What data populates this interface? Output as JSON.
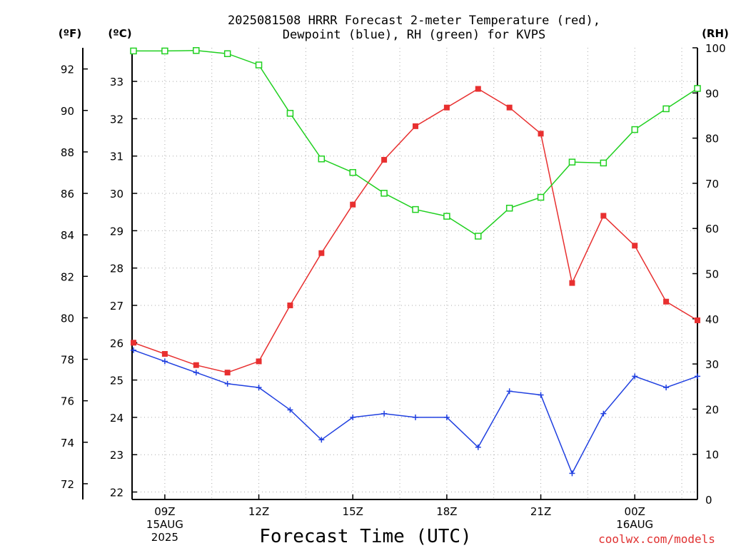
{
  "chart_data": {
    "type": "line",
    "title_line1": "2025081508 HRRR Forecast 2-meter Temperature (red),",
    "title_line2": "Dewpoint (blue), RH (green) for KVPS",
    "units": {
      "left_f": "(ºF)",
      "left_c": "(ºC)",
      "right": "(RH)"
    },
    "xlabel": "Forecast Time (UTC)",
    "credit": "coolwx.com/models",
    "x_hours": [
      8,
      9,
      10,
      11,
      12,
      13,
      14,
      15,
      16,
      17,
      18,
      19,
      20,
      21,
      22,
      23,
      24,
      25,
      26
    ],
    "x_range": [
      8,
      26
    ],
    "x_ticks": [
      {
        "hour": 9,
        "lines": [
          "09Z",
          "15AUG",
          "2025"
        ]
      },
      {
        "hour": 12,
        "lines": [
          "12Z"
        ]
      },
      {
        "hour": 15,
        "lines": [
          "15Z"
        ]
      },
      {
        "hour": 18,
        "lines": [
          "18Z"
        ]
      },
      {
        "hour": 21,
        "lines": [
          "21Z"
        ]
      },
      {
        "hour": 24,
        "lines": [
          "00Z",
          "16AUG"
        ]
      }
    ],
    "left_axis_f": {
      "ticks": [
        72,
        74,
        76,
        78,
        80,
        82,
        84,
        86,
        88,
        90,
        92
      ]
    },
    "left_axis_c": {
      "range": [
        21.8,
        33.9
      ],
      "ticks": [
        22,
        23,
        24,
        25,
        26,
        27,
        28,
        29,
        30,
        31,
        32,
        33
      ]
    },
    "right_axis_rh": {
      "range": [
        0,
        100
      ],
      "ticks": [
        0,
        10,
        20,
        30,
        40,
        50,
        60,
        70,
        80,
        90,
        100
      ]
    },
    "grid": true,
    "series": [
      {
        "name": "Temperature",
        "color": "#e83030",
        "marker": "filled-square",
        "axis": "c",
        "values": [
          26.0,
          25.7,
          25.4,
          25.2,
          25.5,
          27.0,
          28.4,
          29.7,
          30.9,
          31.8,
          32.3,
          32.8,
          32.3,
          31.6,
          27.6,
          29.4,
          28.6,
          27.1,
          26.6
        ]
      },
      {
        "name": "Dewpoint",
        "color": "#2040e0",
        "marker": "plus",
        "axis": "c",
        "values": [
          25.8,
          25.5,
          25.2,
          24.9,
          24.8,
          24.2,
          23.4,
          24.0,
          24.1,
          24.0,
          24.0,
          23.2,
          24.7,
          24.6,
          22.5,
          24.1,
          25.1,
          24.8,
          25.1
        ]
      },
      {
        "name": "RH",
        "color": "#20d020",
        "marker": "open-square",
        "axis": "rh",
        "values": [
          99.3,
          99.3,
          99.4,
          98.7,
          96.2,
          85.5,
          75.4,
          72.4,
          67.8,
          64.2,
          62.7,
          58.3,
          64.5,
          66.9,
          74.7,
          74.5,
          81.9,
          86.5,
          91.0
        ]
      }
    ]
  }
}
